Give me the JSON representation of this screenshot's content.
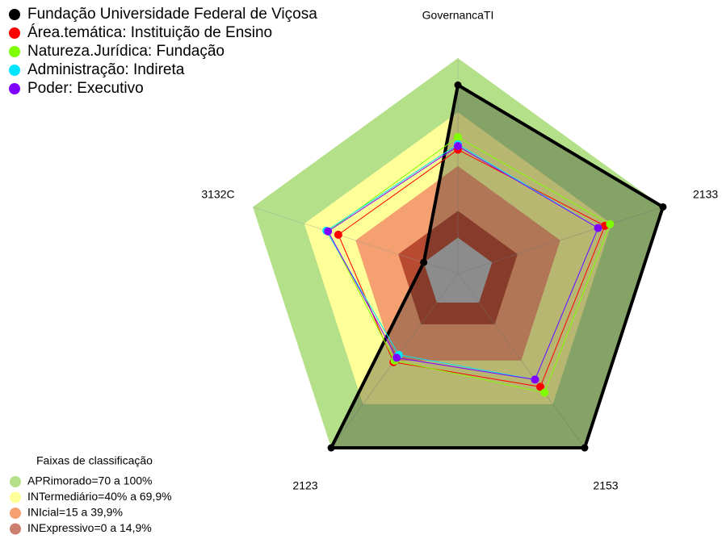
{
  "chart_data": {
    "type": "radar",
    "axes": [
      "GovernancaTI",
      "2133",
      "2153",
      "2123",
      "3132C"
    ],
    "rlim": [
      -20,
      100
    ],
    "series": [
      {
        "name": "Fundação Universidade Federal de Viçosa",
        "color": "#000000",
        "values": [
          85,
          100,
          100,
          100,
          0
        ]
      },
      {
        "name": "Área.temática: Instituição de Ensino",
        "color": "#ff0000",
        "values": [
          49,
          66,
          58,
          41,
          50
        ]
      },
      {
        "name": "Natureza.Jurídica: Fundação",
        "color": "#80ff00",
        "values": [
          56,
          69,
          62,
          40,
          56
        ]
      },
      {
        "name": "Administração: Indireta",
        "color": "#00e5ff",
        "values": [
          52,
          62,
          53,
          36,
          57
        ]
      },
      {
        "name": "Poder: Executivo",
        "color": "#8000ff",
        "values": [
          51,
          62,
          53,
          38,
          56
        ]
      }
    ],
    "bands_title": "Faixas de classificação",
    "bands": [
      {
        "label": "APRimorado=70 a 100%",
        "color": "#b5e08a",
        "min": 70,
        "max": 100
      },
      {
        "label": "INTermediário=40% a 69,9%",
        "color": "#ffff99",
        "min": 40,
        "max": 69.9
      },
      {
        "label": "INIcial=15 a 39,9%",
        "color": "#f5a070",
        "min": 15,
        "max": 39.9
      },
      {
        "label": "INExpressivo=0 a 14,9%",
        "color": "#b84a32",
        "min": 0,
        "max": 14.9
      }
    ]
  }
}
